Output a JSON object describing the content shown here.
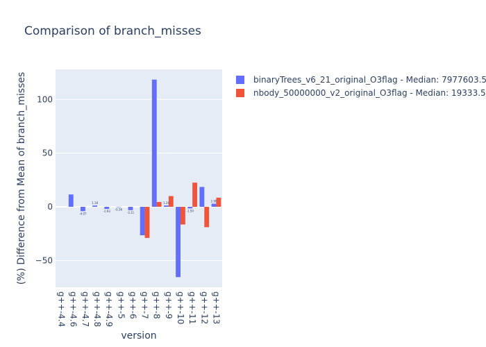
{
  "chart_data": {
    "type": "bar",
    "title": "Comparison of branch_misses",
    "xlabel": "version",
    "ylabel": "(%) Difference from Mean of branch_misses",
    "categories": [
      "g++-4.4",
      "g++-4.6",
      "g++-4.7",
      "g++-4.8",
      "g++-4.9",
      "g++-5",
      "g++-6",
      "g++-7",
      "g++-8",
      "g++-9",
      "g++-10",
      "g++-11",
      "g++-12",
      "g++-13"
    ],
    "ylim": [
      -75,
      128
    ],
    "yticks": [
      -50,
      0,
      50,
      100
    ],
    "grid": true,
    "legend_position": "top-right",
    "series": [
      {
        "name": "binaryTrees_v6_21_original_O3flag - Median: 7977603.50",
        "color": "#636efa",
        "values": [
          null,
          11.5,
          -4.07,
          1.18,
          -1.93,
          -0.36,
          -3.11,
          -26.5,
          118.5,
          1.24,
          -65.5,
          -1.5,
          18.5,
          2.9
        ],
        "labels": [
          "",
          "",
          "-4.07",
          "1.18",
          "-1.93",
          "-0.36",
          "-3.11",
          "",
          "",
          "1.24",
          "",
          "-1.50",
          "",
          "2.90"
        ]
      },
      {
        "name": "nbody_50000000_v2_original_O3flag - Median: 19333.50",
        "color": "#ef553b",
        "values": [
          null,
          null,
          null,
          null,
          null,
          null,
          null,
          -29.0,
          4.5,
          10.0,
          -16.5,
          22.5,
          -19.0,
          8.5
        ],
        "labels": [
          "",
          "",
          "",
          "",
          "",
          "",
          "",
          "",
          "",
          "",
          "",
          "",
          "",
          ""
        ]
      }
    ]
  }
}
